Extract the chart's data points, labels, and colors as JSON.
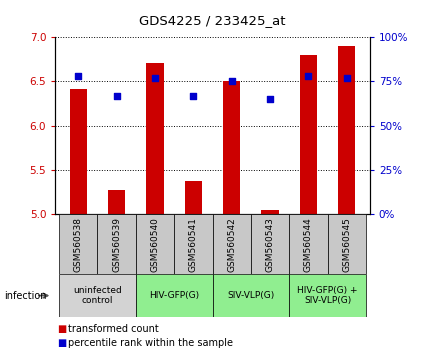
{
  "title": "GDS4225 / 233425_at",
  "samples": [
    "GSM560538",
    "GSM560539",
    "GSM560540",
    "GSM560541",
    "GSM560542",
    "GSM560543",
    "GSM560544",
    "GSM560545"
  ],
  "bar_values": [
    6.42,
    5.27,
    6.71,
    5.37,
    6.5,
    5.05,
    6.8,
    6.9
  ],
  "percentile_values": [
    78,
    67,
    77,
    67,
    75,
    65,
    78,
    77
  ],
  "bar_color": "#cc0000",
  "dot_color": "#0000cc",
  "ylim_left": [
    5.0,
    7.0
  ],
  "ylim_right": [
    0,
    100
  ],
  "yticks_left": [
    5.0,
    5.5,
    6.0,
    6.5,
    7.0
  ],
  "yticks_right": [
    0,
    25,
    50,
    75,
    100
  ],
  "ytick_labels_right": [
    "0%",
    "25%",
    "50%",
    "75%",
    "100%"
  ],
  "groups": [
    {
      "label": "uninfected\ncontrol",
      "start": 0,
      "end": 2,
      "color": "#d3d3d3"
    },
    {
      "label": "HIV-GFP(G)",
      "start": 2,
      "end": 4,
      "color": "#90ee90"
    },
    {
      "label": "SIV-VLP(G)",
      "start": 4,
      "end": 6,
      "color": "#90ee90"
    },
    {
      "label": "HIV-GFP(G) +\nSIV-VLP(G)",
      "start": 6,
      "end": 8,
      "color": "#90ee90"
    }
  ],
  "sample_box_color": "#c8c8c8",
  "legend_bar_label": "transformed count",
  "legend_dot_label": "percentile rank within the sample",
  "infection_label": "infection",
  "bar_width": 0.45,
  "fig_width": 4.25,
  "fig_height": 3.54
}
